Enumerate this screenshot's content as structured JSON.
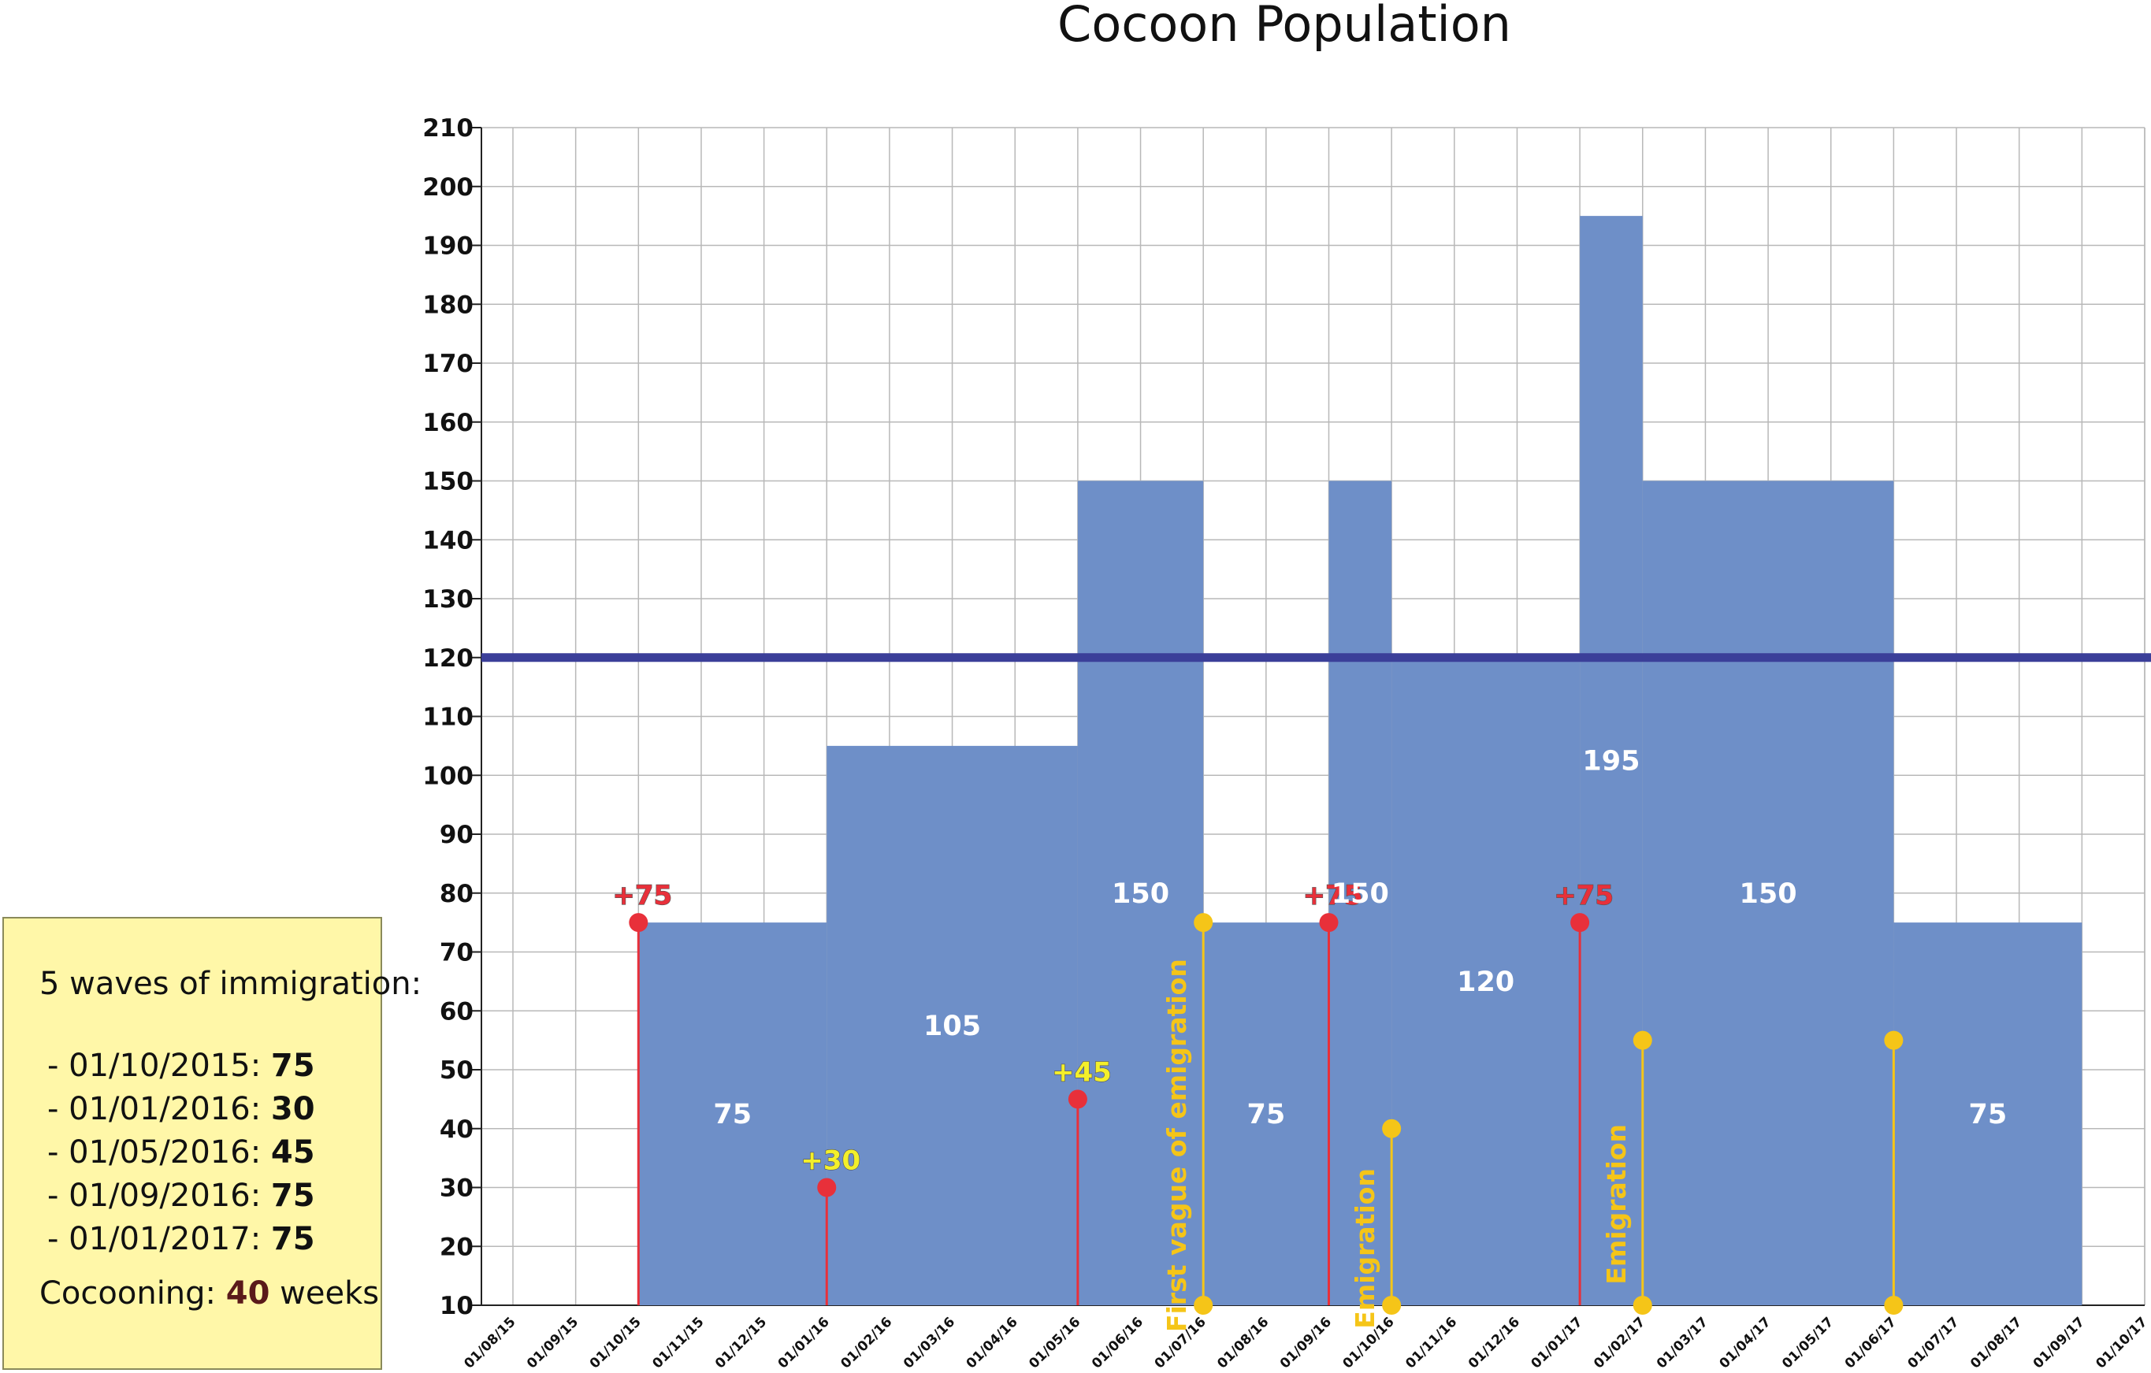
{
  "chart_data": {
    "type": "bar",
    "title": "Cocoon Population",
    "xlabel": "",
    "ylabel": "",
    "ylim": [
      10,
      210
    ],
    "yticks": [
      10,
      20,
      30,
      40,
      50,
      60,
      70,
      80,
      90,
      100,
      110,
      120,
      130,
      140,
      150,
      160,
      170,
      180,
      190,
      200,
      210
    ],
    "x_categories": [
      "01/08/15",
      "01/09/15",
      "01/10/15",
      "01/11/15",
      "01/12/15",
      "01/01/16",
      "01/02/16",
      "01/03/16",
      "01/04/16",
      "01/05/16",
      "01/06/16",
      "01/07/16",
      "01/08/16",
      "01/09/16",
      "01/10/16",
      "01/11/16",
      "01/12/16",
      "01/01/17",
      "01/02/17",
      "01/03/17",
      "01/04/17",
      "01/05/17",
      "01/06/17",
      "01/07/17",
      "01/08/17",
      "01/09/17",
      "01/10/17"
    ],
    "grid": true,
    "bar_color": "#6e8fc8",
    "reference_line": {
      "value": 120,
      "color": "#3b3f99"
    },
    "segments": [
      {
        "start": "01/10/15",
        "end": "01/01/16",
        "value": 75,
        "label": "75"
      },
      {
        "start": "01/01/16",
        "end": "01/05/16",
        "value": 105,
        "label": "105"
      },
      {
        "start": "01/05/16",
        "end": "01/07/16",
        "value": 150,
        "label": "150"
      },
      {
        "start": "01/07/16",
        "end": "01/09/16",
        "value": 75,
        "label": "75"
      },
      {
        "start": "01/09/16",
        "end": "01/10/16",
        "value": 150,
        "label": "150"
      },
      {
        "start": "01/10/16",
        "end": "01/01/17",
        "value": 120,
        "label": "120"
      },
      {
        "start": "01/01/17",
        "end": "01/02/17",
        "value": 195,
        "label": "195"
      },
      {
        "start": "01/02/17",
        "end": "01/06/17",
        "value": 150,
        "label": "150"
      },
      {
        "start": "01/06/17",
        "end": "01/09/17",
        "value": 75,
        "label": "75"
      }
    ],
    "immigration_events": [
      {
        "date": "01/10/15",
        "value": 75,
        "label": "+75",
        "color": "#e8303a"
      },
      {
        "date": "01/01/16",
        "value": 30,
        "label": "+30",
        "color": "#f3ef2a"
      },
      {
        "date": "01/05/16",
        "value": 45,
        "label": "+45",
        "color": "#f3ef2a"
      },
      {
        "date": "01/09/16",
        "value": 75,
        "label": "+75",
        "color": "#e8303a"
      },
      {
        "date": "01/01/17",
        "value": 75,
        "label": "+75",
        "color": "#e8303a"
      }
    ],
    "event_dot_color": "#e8303a",
    "emigration_events": [
      {
        "date": "01/07/16",
        "top": 75,
        "bottom": 10,
        "label": "First vague of emigration"
      },
      {
        "date": "01/10/16",
        "top": 40,
        "bottom": 10,
        "label": "Emigration"
      },
      {
        "date": "01/02/17",
        "top": 55,
        "bottom": 10,
        "label": "Emigration"
      },
      {
        "date": "01/06/17",
        "top": 55,
        "bottom": 10,
        "label": ""
      }
    ],
    "emigration_color": "#f5c518"
  },
  "info_box": {
    "title": "5 waves of immigration:",
    "waves": [
      {
        "prefix": "- 01/10/2015: ",
        "value": "75"
      },
      {
        "prefix": "- 01/01/2016: ",
        "value": "30"
      },
      {
        "prefix": "- 01/05/2016: ",
        "value": "45"
      },
      {
        "prefix": "- 01/09/2016: ",
        "value": "75"
      },
      {
        "prefix": "- 01/01/2017: ",
        "value": "75"
      }
    ],
    "cocooning_label": "Cocooning: ",
    "cocooning_value": "40",
    "cocooning_unit": " weeks"
  }
}
